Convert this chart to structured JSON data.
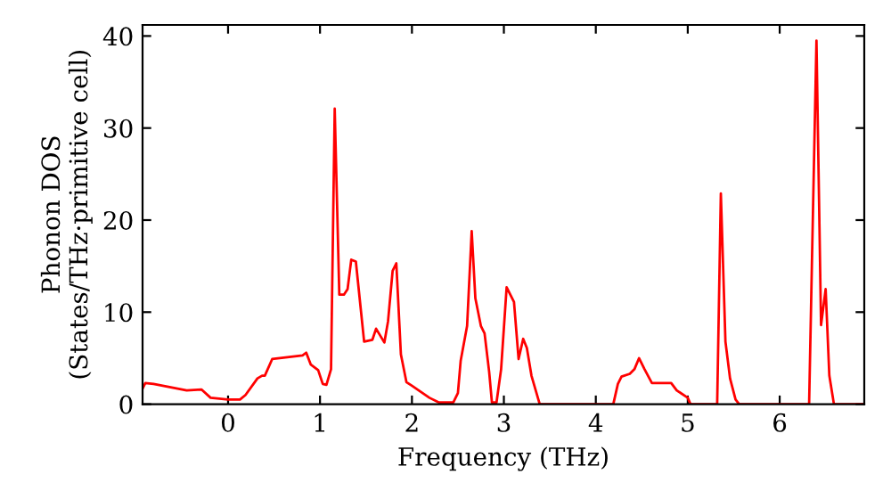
{
  "chart_data": {
    "type": "line",
    "xlabel": "Frequency (THz)",
    "ylabel": "Phonon DOS\n(States/THz·primitive cell)",
    "xlim": [
      -0.93,
      6.92
    ],
    "ylim": [
      0,
      41.2
    ],
    "xticks": [
      0,
      1,
      2,
      3,
      4,
      5,
      6
    ],
    "yticks": [
      0,
      10,
      20,
      30,
      40
    ],
    "grid": false,
    "legend": false,
    "series": [
      {
        "color": "#ff0000",
        "x": [
          -0.93,
          -0.9,
          -0.81,
          -0.45,
          -0.29,
          -0.19,
          0,
          0.13,
          0.19,
          0.32,
          0.37,
          0.4,
          0.48,
          0.81,
          0.85,
          0.9,
          0.98,
          1.03,
          1.07,
          1.12,
          1.16,
          1.21,
          1.26,
          1.3,
          1.34,
          1.39,
          1.48,
          1.57,
          1.61,
          1.7,
          1.74,
          1.79,
          1.83,
          1.88,
          1.94,
          2.0,
          2.19,
          2.29,
          2.45,
          2.5,
          2.53,
          2.6,
          2.65,
          2.69,
          2.75,
          2.79,
          2.84,
          2.87,
          2.92,
          2.97,
          3.03,
          3.11,
          3.16,
          3.21,
          3.25,
          3.3,
          3.39,
          4.19,
          4.24,
          4.28,
          4.37,
          4.42,
          4.47,
          4.53,
          4.61,
          4.82,
          4.88,
          5.0,
          5.03,
          5.32,
          5.36,
          5.41,
          5.46,
          5.52,
          5.56,
          6.32,
          6.35,
          6.4,
          6.45,
          6.5,
          6.54,
          6.59,
          6.92
        ],
        "values": [
          1.7,
          2.3,
          2.2,
          1.5,
          1.6,
          0.7,
          0.5,
          0.5,
          1.0,
          2.8,
          3.1,
          3.1,
          4.9,
          5.3,
          5.6,
          4.3,
          3.7,
          2.2,
          2.1,
          3.8,
          32.1,
          11.9,
          11.9,
          12.5,
          15.7,
          15.5,
          6.8,
          7.0,
          8.2,
          6.7,
          9.0,
          14.5,
          15.3,
          5.4,
          2.4,
          2.0,
          0.7,
          0.2,
          0.2,
          1.2,
          4.7,
          8.5,
          18.8,
          11.5,
          8.5,
          7.7,
          3.5,
          0.2,
          0.2,
          3.8,
          12.7,
          11.1,
          4.9,
          7.1,
          6.1,
          3.1,
          0,
          0,
          2.2,
          3.0,
          3.3,
          3.8,
          5.0,
          3.8,
          2.3,
          2.3,
          1.5,
          0.7,
          0,
          0,
          22.9,
          6.8,
          2.8,
          0.5,
          0,
          0,
          15.0,
          39.5,
          8.6,
          12.5,
          3.1,
          0,
          0
        ]
      }
    ]
  }
}
